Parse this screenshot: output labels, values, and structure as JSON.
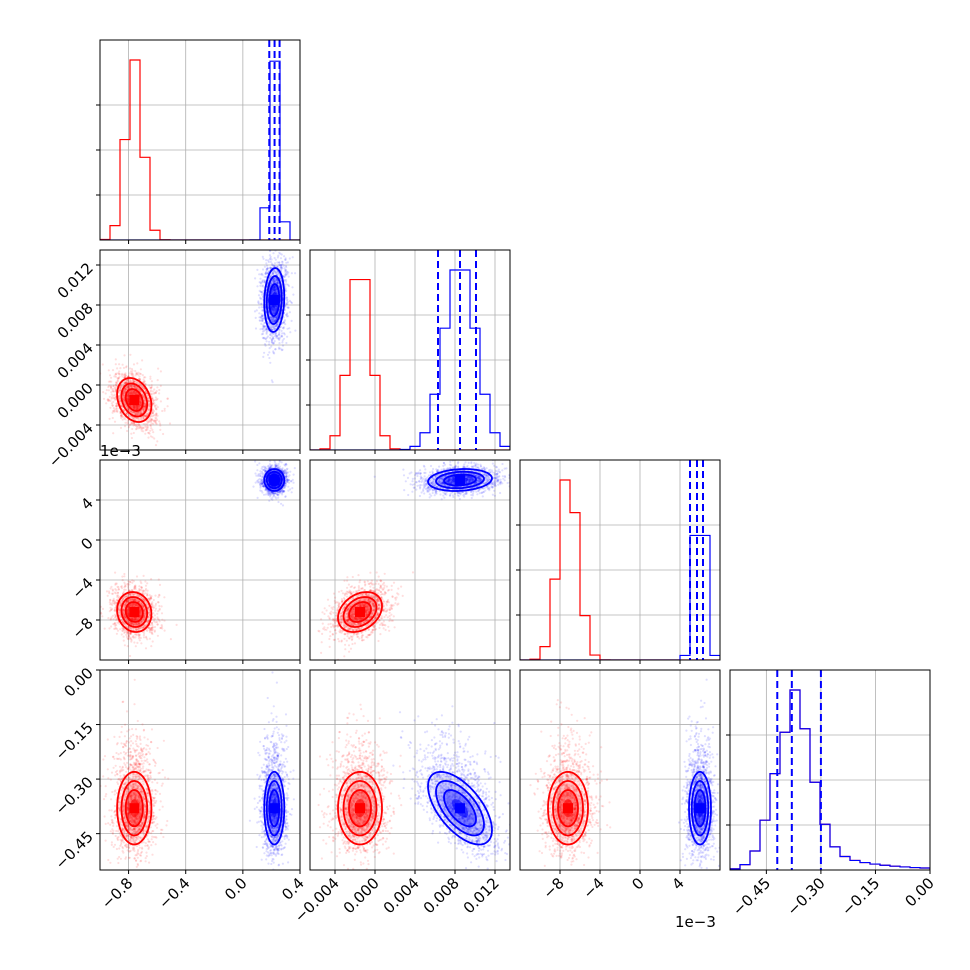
{
  "chart_data": {
    "type": "corner",
    "parameters": [
      {
        "range": [
          -1.0,
          0.4
        ],
        "ticks": [
          -0.8,
          -0.4,
          0.0,
          0.4
        ],
        "tick_labels": [
          "−0.8",
          "−0.4",
          "0.0",
          "0.4"
        ],
        "offset_label": ""
      },
      {
        "range": [
          -0.0065,
          0.0135
        ],
        "ticks": [
          -0.004,
          0.0,
          0.004,
          0.008,
          0.012
        ],
        "tick_labels": [
          "−0.004",
          "0.000",
          "0.004",
          "0.008",
          "0.012"
        ],
        "offset_label": ""
      },
      {
        "range": [
          -12.0,
          8.0
        ],
        "ticks": [
          -8,
          -4,
          0,
          4
        ],
        "tick_labels": [
          "−8",
          "−4",
          "0",
          "4"
        ],
        "offset_label": "1e−3"
      },
      {
        "range": [
          -0.55,
          0.0
        ],
        "ticks": [
          -0.45,
          -0.3,
          -0.15,
          0.0
        ],
        "tick_labels": [
          "−0.45",
          "−0.30",
          "−0.15",
          "0.00"
        ],
        "y_ticks": [
          0.0,
          -0.15,
          -0.3,
          -0.45
        ],
        "y_tick_labels": [
          "0.00",
          "−0.15",
          "−0.30",
          "−0.45"
        ],
        "offset_label": ""
      }
    ],
    "series": [
      {
        "color": "#ff0000",
        "means": [
          -0.76,
          -0.0015,
          -7.2,
          -0.38
        ],
        "sds": [
          0.06,
          0.0011,
          1.0,
          0.05
        ]
      },
      {
        "color": "#0000ff",
        "means": [
          0.22,
          0.0085,
          6.0,
          -0.38
        ],
        "sds": [
          0.035,
          0.0016,
          0.55,
          0.05
        ]
      }
    ],
    "quantile_lines": {
      "color": "#0000ff",
      "params": [
        [
          0.185,
          0.222,
          0.257
        ],
        [
          0.0063,
          0.0085,
          0.0101
        ],
        [
          5.0,
          5.7,
          6.3
        ],
        [
          -0.42,
          -0.38,
          -0.3
        ]
      ]
    },
    "grid": true
  }
}
